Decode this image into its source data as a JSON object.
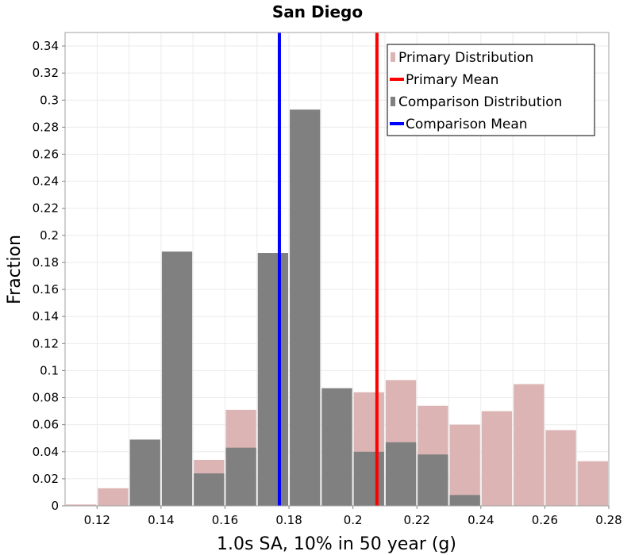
{
  "chart_data": {
    "type": "bar",
    "title": "San Diego",
    "xlabel": "1.0s SA, 10% in 50 year (g)",
    "ylabel": "Fraction",
    "xlim": [
      0.11,
      0.28
    ],
    "ylim": [
      0,
      0.35
    ],
    "bin_width": 0.01,
    "xticks": [
      0.12,
      0.14,
      0.16,
      0.18,
      0.2,
      0.22,
      0.24,
      0.26,
      0.28
    ],
    "xtick_labels": [
      "0.12",
      "0.14",
      "0.16",
      "0.18",
      "0.2",
      "0.22",
      "0.24",
      "0.26",
      "0.28"
    ],
    "yticks": [
      0,
      0.02,
      0.04,
      0.06,
      0.08,
      0.1,
      0.12,
      0.14,
      0.16,
      0.18,
      0.2,
      0.22,
      0.24,
      0.26,
      0.28,
      0.3,
      0.32,
      0.34
    ],
    "ytick_labels": [
      "0",
      "0.02",
      "0.04",
      "0.06",
      "0.08",
      "0.1",
      "0.12",
      "0.14",
      "0.16",
      "0.18",
      "0.2",
      "0.22",
      "0.24",
      "0.26",
      "0.28",
      "0.3",
      "0.32",
      "0.34"
    ],
    "grid": true,
    "series": [
      {
        "name": "Primary Distribution",
        "color": "#dcb4b4",
        "bin_starts": [
          0.11,
          0.12,
          0.13,
          0.14,
          0.15,
          0.16,
          0.17,
          0.18,
          0.19,
          0.2,
          0.21,
          0.22,
          0.23,
          0.24,
          0.25,
          0.26,
          0.27
        ],
        "values": [
          0.001,
          0.013,
          0.0,
          0.0,
          0.034,
          0.071,
          0.0,
          0.0,
          0.0,
          0.084,
          0.093,
          0.074,
          0.06,
          0.07,
          0.09,
          0.056,
          0.033
        ]
      },
      {
        "name": "Comparison Distribution",
        "color": "#808080",
        "bin_starts": [
          0.11,
          0.12,
          0.13,
          0.14,
          0.15,
          0.16,
          0.17,
          0.18,
          0.19,
          0.2,
          0.21,
          0.22,
          0.23,
          0.24,
          0.25,
          0.26,
          0.27
        ],
        "values": [
          0.0,
          0.0,
          0.049,
          0.188,
          0.024,
          0.043,
          0.187,
          0.293,
          0.087,
          0.04,
          0.047,
          0.038,
          0.008,
          0.0,
          0.0,
          0.0,
          0.0
        ]
      }
    ],
    "means": [
      {
        "name": "Primary Mean",
        "value": 0.2075,
        "color": "#ff0000"
      },
      {
        "name": "Comparison Mean",
        "value": 0.177,
        "color": "#0000ff"
      }
    ],
    "legend": {
      "position": "top-right",
      "entries": [
        {
          "label": "Primary Distribution",
          "kind": "box",
          "color": "#dcb4b4"
        },
        {
          "label": "Primary Mean",
          "kind": "line",
          "color": "#ff0000"
        },
        {
          "label": "Comparison Distribution",
          "kind": "box",
          "color": "#808080"
        },
        {
          "label": "Comparison Mean",
          "kind": "line",
          "color": "#0000ff"
        }
      ]
    }
  }
}
